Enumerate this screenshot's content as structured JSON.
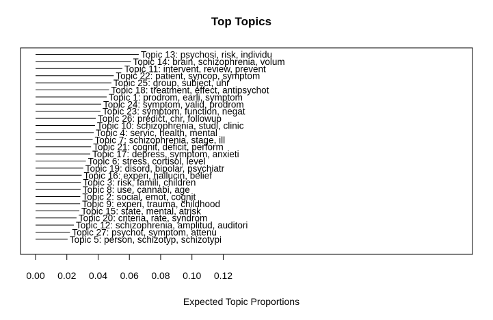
{
  "chart_data": {
    "type": "bar",
    "orientation": "horizontal",
    "title": "Top Topics",
    "xlabel": "Expected Topic Proportions",
    "ylabel": "",
    "xlim": [
      0,
      0.13
    ],
    "x_ticks": [
      0.0,
      0.02,
      0.04,
      0.06,
      0.08,
      0.1,
      0.12
    ],
    "x_tick_labels": [
      "0.00",
      "0.02",
      "0.04",
      "0.06",
      "0.08",
      "0.10",
      "0.12"
    ],
    "grid": false,
    "legend": "none",
    "colors": {
      "line": "#000000",
      "background": "#ffffff"
    },
    "categories": [
      "Topic 13: psychosi, risk, individu",
      "Topic 14: brain, schizophrenia, volum",
      "Topic 11: intervent, review, prevent",
      "Topic 22: patient, syncop, symptom",
      "Topic 25: group, subject, uhr",
      "Topic 18: treatment, effect, antipsychot",
      "Topic 1: prodrom, earli, symptom",
      "Topic 24: symptom, valid, prodrom",
      "Topic 23: symptom, function, negat",
      "Topic 26: predict, chr, followup",
      "Topic 10: schizophrenia, studi, clinic",
      "Topic 4: servic, health, mental",
      "Topic 7: schizophrenia, stage, ill",
      "Topic 21: cognit, deficit, perform",
      "Topic 17: depress, symptom, anxieti",
      "Topic 6: stress, cortisol, level",
      "Topic 19: disord, bipolar, psychiatr",
      "Topic 16: experi, hallucin, belief",
      "Topic 3: risk, famili, children",
      "Topic 8: use, cannabi, age",
      "Topic 2: social, emot, cognit",
      "Topic 9: experi, trauma, childhood",
      "Topic 15: state, mental, atrisk",
      "Topic 20: criteria, rate, syndrom",
      "Topic 12: schizophrenia, amplitud, auditori",
      "Topic 27: psychot, symptom, attenu",
      "Topic 5: person, schizotyp, schizotypi"
    ],
    "values": [
      0.066,
      0.061,
      0.0555,
      0.05,
      0.0485,
      0.047,
      0.0455,
      0.042,
      0.0415,
      0.0385,
      0.038,
      0.0372,
      0.0365,
      0.0355,
      0.035,
      0.0322,
      0.0305,
      0.0295,
      0.029,
      0.0288,
      0.0286,
      0.0285,
      0.028,
      0.0262,
      0.0245,
      0.022,
      0.0205
    ]
  }
}
